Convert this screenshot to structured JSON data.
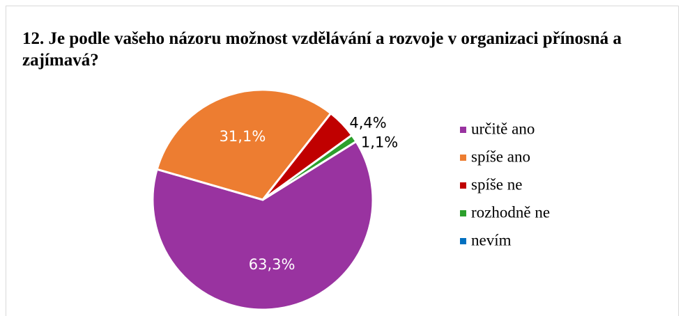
{
  "chart_data": {
    "type": "pie",
    "title": "12. Je podle vašeho názoru možnost vzdělávání a rozvoje v organizaci přínosná a zajímavá?",
    "categories": [
      "určitě ano",
      "spíše ano",
      "spíše ne",
      "rozhodně ne",
      "nevím"
    ],
    "values": [
      63.3,
      31.1,
      4.4,
      1.1,
      0
    ],
    "value_labels": [
      "63,3%",
      "31,1%",
      "4,4%",
      "1,1%",
      null
    ],
    "colors": [
      "#9933a0",
      "#ed7d31",
      "#c00000",
      "#2ca02c",
      "#0070c0"
    ],
    "legend": "right"
  }
}
